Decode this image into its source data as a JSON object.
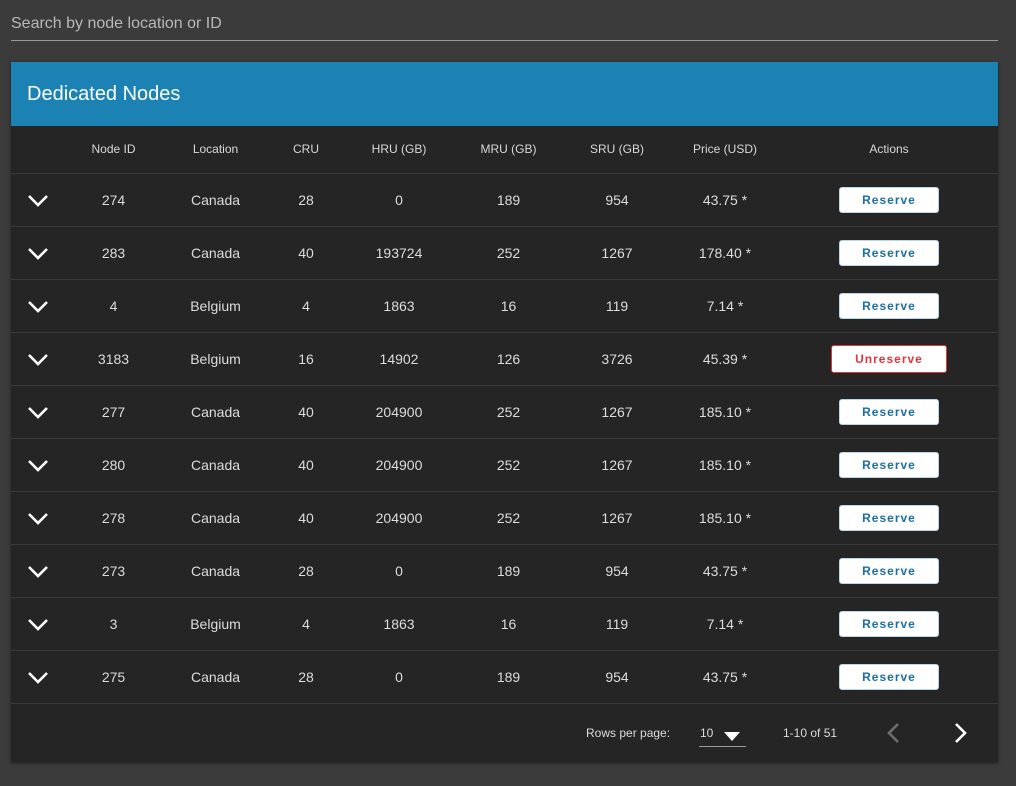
{
  "search": {
    "placeholder": "Search by node location or ID"
  },
  "card": {
    "title": "Dedicated Nodes"
  },
  "table": {
    "headers": {
      "node_id": "Node ID",
      "location": "Location",
      "cru": "CRU",
      "hru": "HRU (GB)",
      "mru": "MRU (GB)",
      "sru": "SRU (GB)",
      "price": "Price (USD)",
      "actions": "Actions"
    },
    "rows": [
      {
        "node_id": "274",
        "location": "Canada",
        "cru": "28",
        "hru": "0",
        "mru": "189",
        "sru": "954",
        "price": "43.75 *",
        "action": "Reserve"
      },
      {
        "node_id": "283",
        "location": "Canada",
        "cru": "40",
        "hru": "193724",
        "mru": "252",
        "sru": "1267",
        "price": "178.40 *",
        "action": "Reserve"
      },
      {
        "node_id": "4",
        "location": "Belgium",
        "cru": "4",
        "hru": "1863",
        "mru": "16",
        "sru": "119",
        "price": "7.14 *",
        "action": "Reserve"
      },
      {
        "node_id": "3183",
        "location": "Belgium",
        "cru": "16",
        "hru": "14902",
        "mru": "126",
        "sru": "3726",
        "price": "45.39 *",
        "action": "Unreserve"
      },
      {
        "node_id": "277",
        "location": "Canada",
        "cru": "40",
        "hru": "204900",
        "mru": "252",
        "sru": "1267",
        "price": "185.10 *",
        "action": "Reserve"
      },
      {
        "node_id": "280",
        "location": "Canada",
        "cru": "40",
        "hru": "204900",
        "mru": "252",
        "sru": "1267",
        "price": "185.10 *",
        "action": "Reserve"
      },
      {
        "node_id": "278",
        "location": "Canada",
        "cru": "40",
        "hru": "204900",
        "mru": "252",
        "sru": "1267",
        "price": "185.10 *",
        "action": "Reserve"
      },
      {
        "node_id": "273",
        "location": "Canada",
        "cru": "28",
        "hru": "0",
        "mru": "189",
        "sru": "954",
        "price": "43.75 *",
        "action": "Reserve"
      },
      {
        "node_id": "3",
        "location": "Belgium",
        "cru": "4",
        "hru": "1863",
        "mru": "16",
        "sru": "119",
        "price": "7.14 *",
        "action": "Reserve"
      },
      {
        "node_id": "275",
        "location": "Canada",
        "cru": "28",
        "hru": "0",
        "mru": "189",
        "sru": "954",
        "price": "43.75 *",
        "action": "Reserve"
      }
    ]
  },
  "pagination": {
    "rows_per_page_label": "Rows per page:",
    "rows_per_page_value": "10",
    "range_text": "1-10 of 51",
    "prev_icon": "chevron-left-icon",
    "next_icon": "chevron-right-icon"
  },
  "colors": {
    "background": "#3b3b3b",
    "card": "#252525",
    "header": "#1b82b3",
    "reserve_text": "#1b6fa0",
    "unreserve_text": "#e0363b"
  }
}
